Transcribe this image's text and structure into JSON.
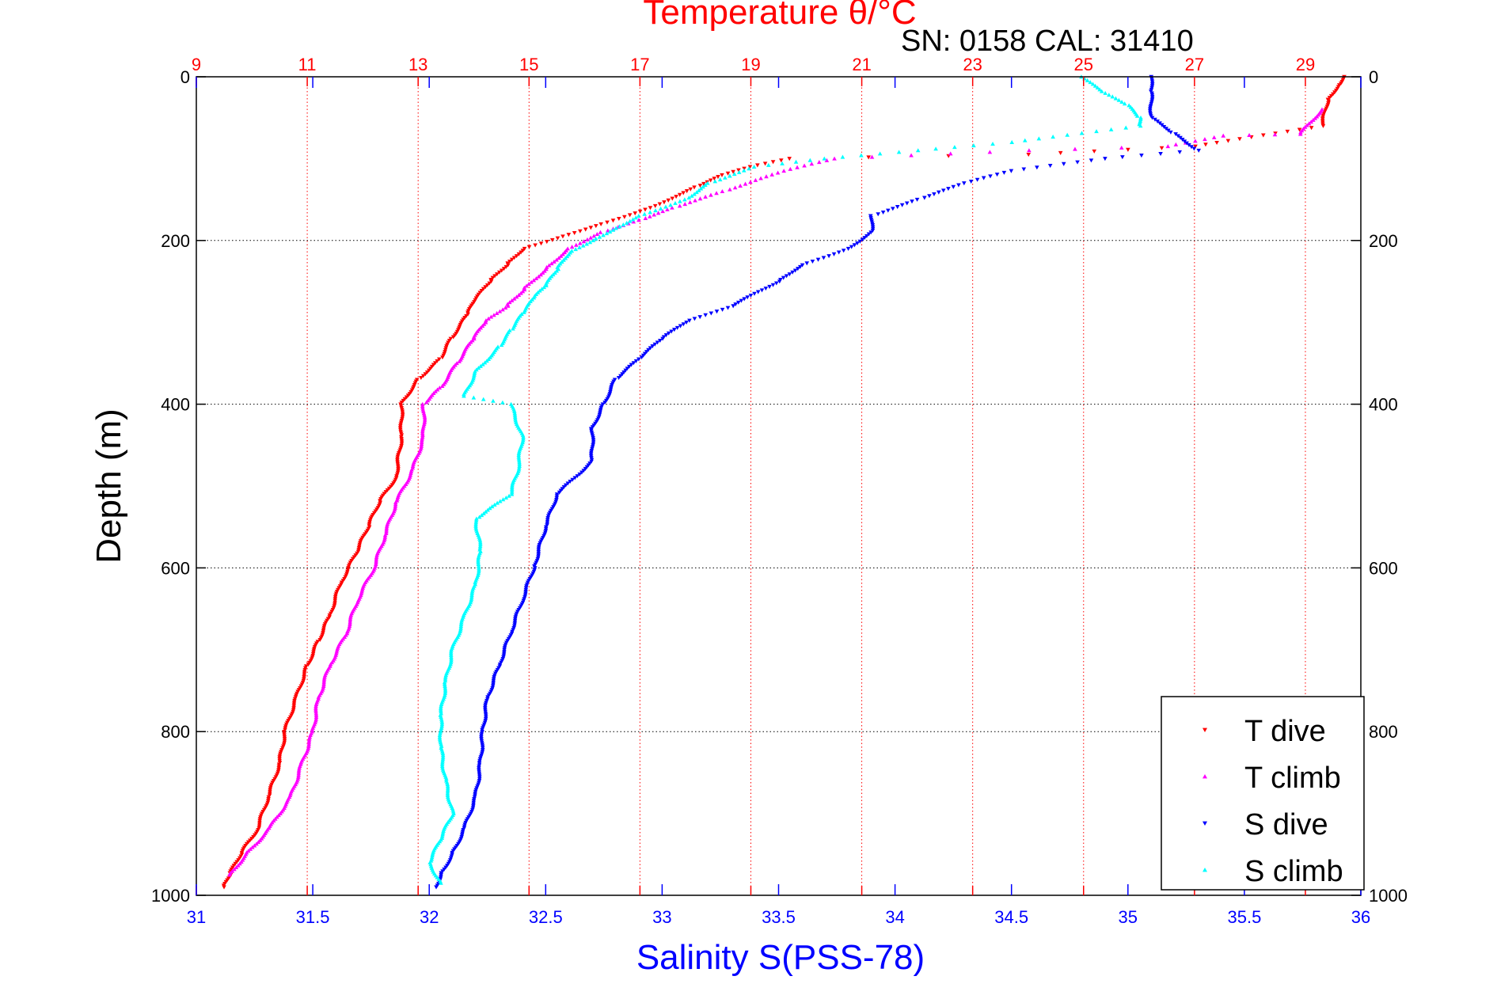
{
  "chart_data": {
    "type": "scatter",
    "title": "Temperature θ/°C",
    "subtitle": "SN: 0158  CAL: 31410",
    "ylabel": "Depth (m)",
    "xlabel": "Salinity S(PSS-78)",
    "ylim": [
      0,
      1000
    ],
    "y_reversed": true,
    "temperature_axis": {
      "position": "top",
      "range": [
        9,
        30
      ],
      "ticks": [
        "9",
        "11",
        "13",
        "15",
        "17",
        "19",
        "21",
        "23",
        "25",
        "27",
        "29"
      ],
      "color": "#ff0000"
    },
    "salinity_axis": {
      "position": "bottom",
      "range": [
        31,
        36
      ],
      "ticks": [
        "31",
        "31.5",
        "32",
        "32.5",
        "33",
        "33.5",
        "34",
        "34.5",
        "35",
        "35.5",
        "36"
      ],
      "color": "#0000ff"
    },
    "depth_ticks": [
      "0",
      "200",
      "400",
      "600",
      "800",
      "1000"
    ],
    "grid": true,
    "legend_position": "bottom-right",
    "series": [
      {
        "name": "T dive",
        "axis": "temperature",
        "color": "#ff0000",
        "marker": "triangle-down",
        "points": [
          [
            29.7,
            0
          ],
          [
            29.6,
            10
          ],
          [
            29.4,
            30
          ],
          [
            29.3,
            60
          ],
          [
            27,
            85
          ],
          [
            24,
            95
          ],
          [
            19.7,
            100
          ],
          [
            19,
            110
          ],
          [
            18.5,
            120
          ],
          [
            18,
            135
          ],
          [
            17.2,
            160
          ],
          [
            16.3,
            180
          ],
          [
            15.6,
            195
          ],
          [
            14.9,
            210
          ],
          [
            14.6,
            230
          ],
          [
            14.3,
            250
          ],
          [
            14,
            275
          ],
          [
            13.9,
            290
          ],
          [
            13.6,
            320
          ],
          [
            13.4,
            345
          ],
          [
            13,
            370
          ],
          [
            12.7,
            400
          ],
          [
            12.7,
            440
          ],
          [
            12.6,
            490
          ],
          [
            12.3,
            520
          ],
          [
            12.1,
            550
          ],
          [
            11.9,
            580
          ],
          [
            11.6,
            620
          ],
          [
            11.4,
            660
          ],
          [
            11.2,
            690
          ],
          [
            11,
            720
          ],
          [
            10.8,
            760
          ],
          [
            10.6,
            800
          ],
          [
            10.5,
            840
          ],
          [
            10.3,
            880
          ],
          [
            10.1,
            920
          ],
          [
            9.8,
            950
          ],
          [
            9.6,
            975
          ],
          [
            9.5,
            990
          ]
        ]
      },
      {
        "name": "T climb",
        "axis": "temperature",
        "color": "#ff00ff",
        "marker": "triangle-up",
        "points": [
          [
            29.3,
            40
          ],
          [
            28.9,
            70
          ],
          [
            27.5,
            72
          ],
          [
            26.5,
            85
          ],
          [
            24,
            90
          ],
          [
            20.5,
            100
          ],
          [
            19.6,
            115
          ],
          [
            18.5,
            140
          ],
          [
            17.6,
            160
          ],
          [
            17,
            175
          ],
          [
            16.3,
            190
          ],
          [
            15.7,
            210
          ],
          [
            15.3,
            235
          ],
          [
            14.9,
            260
          ],
          [
            14.6,
            280
          ],
          [
            14.2,
            300
          ],
          [
            14,
            320
          ],
          [
            13.7,
            350
          ],
          [
            13.4,
            380
          ],
          [
            13.1,
            400
          ],
          [
            13.1,
            440
          ],
          [
            12.9,
            480
          ],
          [
            12.6,
            520
          ],
          [
            12.4,
            560
          ],
          [
            12.2,
            600
          ],
          [
            11.9,
            640
          ],
          [
            11.7,
            680
          ],
          [
            11.4,
            720
          ],
          [
            11.2,
            760
          ],
          [
            11.1,
            800
          ],
          [
            10.9,
            840
          ],
          [
            10.7,
            880
          ],
          [
            10.3,
            920
          ],
          [
            9.9,
            950
          ],
          [
            9.6,
            975
          ]
        ]
      },
      {
        "name": "S dive",
        "axis": "salinity",
        "color": "#0000ff",
        "marker": "triangle-down",
        "points": [
          [
            35.1,
            0
          ],
          [
            35.1,
            20
          ],
          [
            35.1,
            50
          ],
          [
            35.2,
            70
          ],
          [
            35.3,
            90
          ],
          [
            34.9,
            100
          ],
          [
            34.5,
            115
          ],
          [
            34.3,
            130
          ],
          [
            34.1,
            150
          ],
          [
            33.9,
            170
          ],
          [
            33.9,
            190
          ],
          [
            33.8,
            210
          ],
          [
            33.6,
            230
          ],
          [
            33.5,
            250
          ],
          [
            33.3,
            280
          ],
          [
            33.1,
            300
          ],
          [
            33,
            320
          ],
          [
            32.9,
            345
          ],
          [
            32.8,
            370
          ],
          [
            32.75,
            400
          ],
          [
            32.7,
            430
          ],
          [
            32.7,
            470
          ],
          [
            32.55,
            510
          ],
          [
            32.5,
            550
          ],
          [
            32.45,
            600
          ],
          [
            32.4,
            640
          ],
          [
            32.35,
            680
          ],
          [
            32.3,
            720
          ],
          [
            32.25,
            760
          ],
          [
            32.23,
            800
          ],
          [
            32.22,
            840
          ],
          [
            32.2,
            880
          ],
          [
            32.15,
            920
          ],
          [
            32.1,
            950
          ],
          [
            32.05,
            975
          ],
          [
            32.03,
            990
          ]
        ]
      },
      {
        "name": "S climb",
        "axis": "salinity",
        "color": "#00ffff",
        "marker": "triangle-up",
        "points": [
          [
            34.8,
            0
          ],
          [
            34.9,
            20
          ],
          [
            35,
            35
          ],
          [
            35.05,
            50
          ],
          [
            35.05,
            60
          ],
          [
            34.5,
            80
          ],
          [
            34.1,
            90
          ],
          [
            33.7,
            100
          ],
          [
            33.4,
            110
          ],
          [
            33.2,
            130
          ],
          [
            33.1,
            150
          ],
          [
            32.9,
            170
          ],
          [
            32.8,
            185
          ],
          [
            32.7,
            200
          ],
          [
            32.6,
            215
          ],
          [
            32.55,
            235
          ],
          [
            32.5,
            255
          ],
          [
            32.45,
            270
          ],
          [
            32.4,
            290
          ],
          [
            32.35,
            310
          ],
          [
            32.3,
            330
          ],
          [
            32.2,
            360
          ],
          [
            32.15,
            390
          ],
          [
            32.35,
            400
          ],
          [
            32.4,
            440
          ],
          [
            32.38,
            480
          ],
          [
            32.35,
            510
          ],
          [
            32.2,
            540
          ],
          [
            32.22,
            580
          ],
          [
            32.2,
            620
          ],
          [
            32.15,
            660
          ],
          [
            32.1,
            700
          ],
          [
            32.07,
            740
          ],
          [
            32.05,
            780
          ],
          [
            32.05,
            820
          ],
          [
            32.07,
            860
          ],
          [
            32.1,
            900
          ],
          [
            32.05,
            930
          ],
          [
            32,
            960
          ],
          [
            32.05,
            985
          ]
        ]
      }
    ]
  }
}
